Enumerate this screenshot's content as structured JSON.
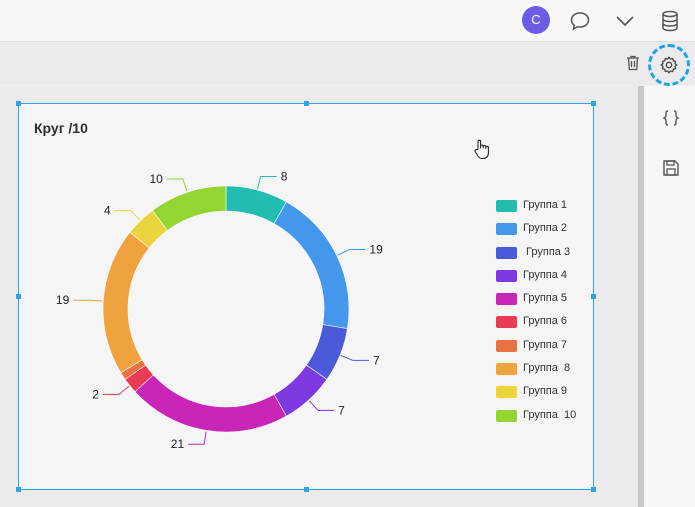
{
  "header": {
    "avatar_initial": "C"
  },
  "widget": {
    "title": "Круг /10"
  },
  "chart_data": {
    "type": "pie",
    "variant": "donut",
    "title": "Круг /10",
    "categories": [
      "Группа 1",
      "Группа 2",
      " Группа 3",
      "Группа 4",
      "Группа 5",
      "Группа 6",
      "Группа 7",
      "Группа  8",
      "Группа 9",
      "Группа  10"
    ],
    "values": [
      8,
      19,
      7,
      7,
      21,
      2,
      1,
      19,
      4,
      10
    ],
    "data_labels": [
      "8",
      "19",
      "7",
      "7",
      "21",
      "2",
      "",
      "19",
      "4",
      "10"
    ],
    "colors": [
      "#22bcb0",
      "#4597ec",
      "#4b5ad9",
      "#7e3ae0",
      "#c926b7",
      "#ea3b55",
      "#ea7142",
      "#efa33e",
      "#ecd43e",
      "#93d634"
    ],
    "legend_position": "right"
  }
}
